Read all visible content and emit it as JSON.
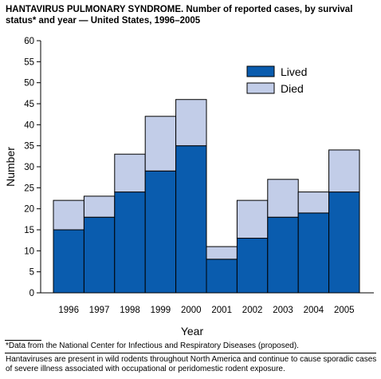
{
  "title": "HANTAVIRUS PULMONARY SYNDROME. Number of reported cases, by survival status* and year — United States, 1996–2005",
  "footnote": "*Data from the National Center for Infectious and Respiratory Diseases (proposed).",
  "caption": "Hantaviruses are present in wild rodents throughout North America and continue to cause sporadic cases of severe illness associated with occupational or peridomestic rodent exposure.",
  "colors": {
    "lived": "#0a5cae",
    "died": "#c2cde8"
  },
  "chart_data": {
    "type": "bar",
    "stacked": true,
    "categories": [
      "1996",
      "1997",
      "1998",
      "1999",
      "2000",
      "2001",
      "2002",
      "2003",
      "2004",
      "2005"
    ],
    "series": [
      {
        "name": "Lived",
        "values": [
          15,
          18,
          24,
          29,
          35,
          8,
          13,
          18,
          19,
          24
        ]
      },
      {
        "name": "Died",
        "values": [
          7,
          5,
          9,
          13,
          11,
          3,
          9,
          9,
          5,
          10
        ]
      }
    ],
    "xlabel": "Year",
    "ylabel": "Number",
    "ylim": [
      0,
      60
    ],
    "yticks": [
      0,
      5,
      10,
      15,
      20,
      25,
      30,
      35,
      40,
      45,
      50,
      55,
      60
    ],
    "grid": false,
    "legend": "top-right"
  }
}
